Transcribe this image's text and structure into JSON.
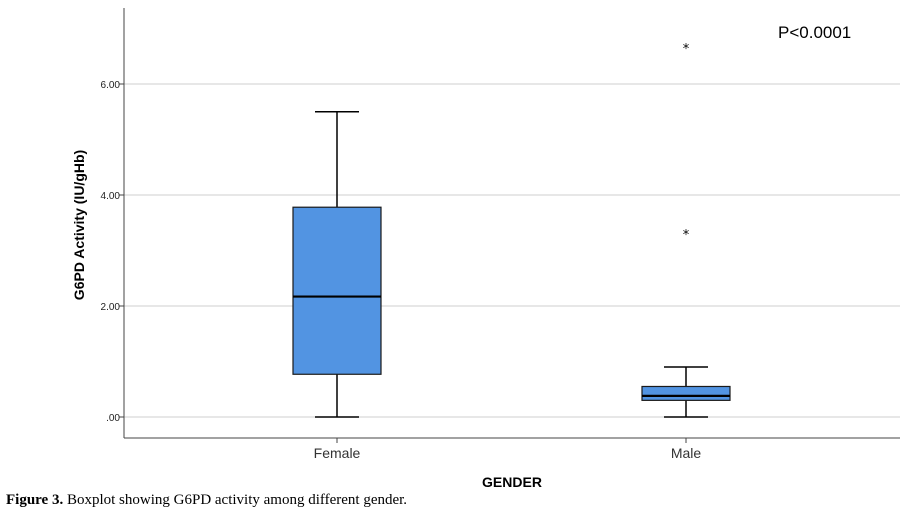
{
  "chart_data": {
    "type": "boxplot",
    "title": "",
    "xlabel": "GENDER",
    "ylabel": "G6PD Activity (IU/gHb)",
    "ylim": [
      0,
      7.5
    ],
    "yticks": [
      {
        "value": 0,
        "label": ".00"
      },
      {
        "value": 2,
        "label": "2.00"
      },
      {
        "value": 4,
        "label": "4.00"
      },
      {
        "value": 6,
        "label": "6.00"
      }
    ],
    "grid": true,
    "categories": [
      "Female",
      "Male"
    ],
    "boxes": [
      {
        "category": "Female",
        "min": 0.0,
        "q1": 0.77,
        "median": 2.17,
        "q3": 3.78,
        "max": 5.5,
        "outliers": []
      },
      {
        "category": "Male",
        "min": 0.0,
        "q1": 0.3,
        "median": 0.38,
        "q3": 0.55,
        "max": 0.9,
        "outliers": [
          3.3,
          6.65
        ]
      }
    ],
    "annotation": "P<0.0001",
    "box_color": "#5294e2"
  },
  "caption": {
    "label": "Figure 3.",
    "text": " Boxplot showing G6PD activity among different gender."
  }
}
